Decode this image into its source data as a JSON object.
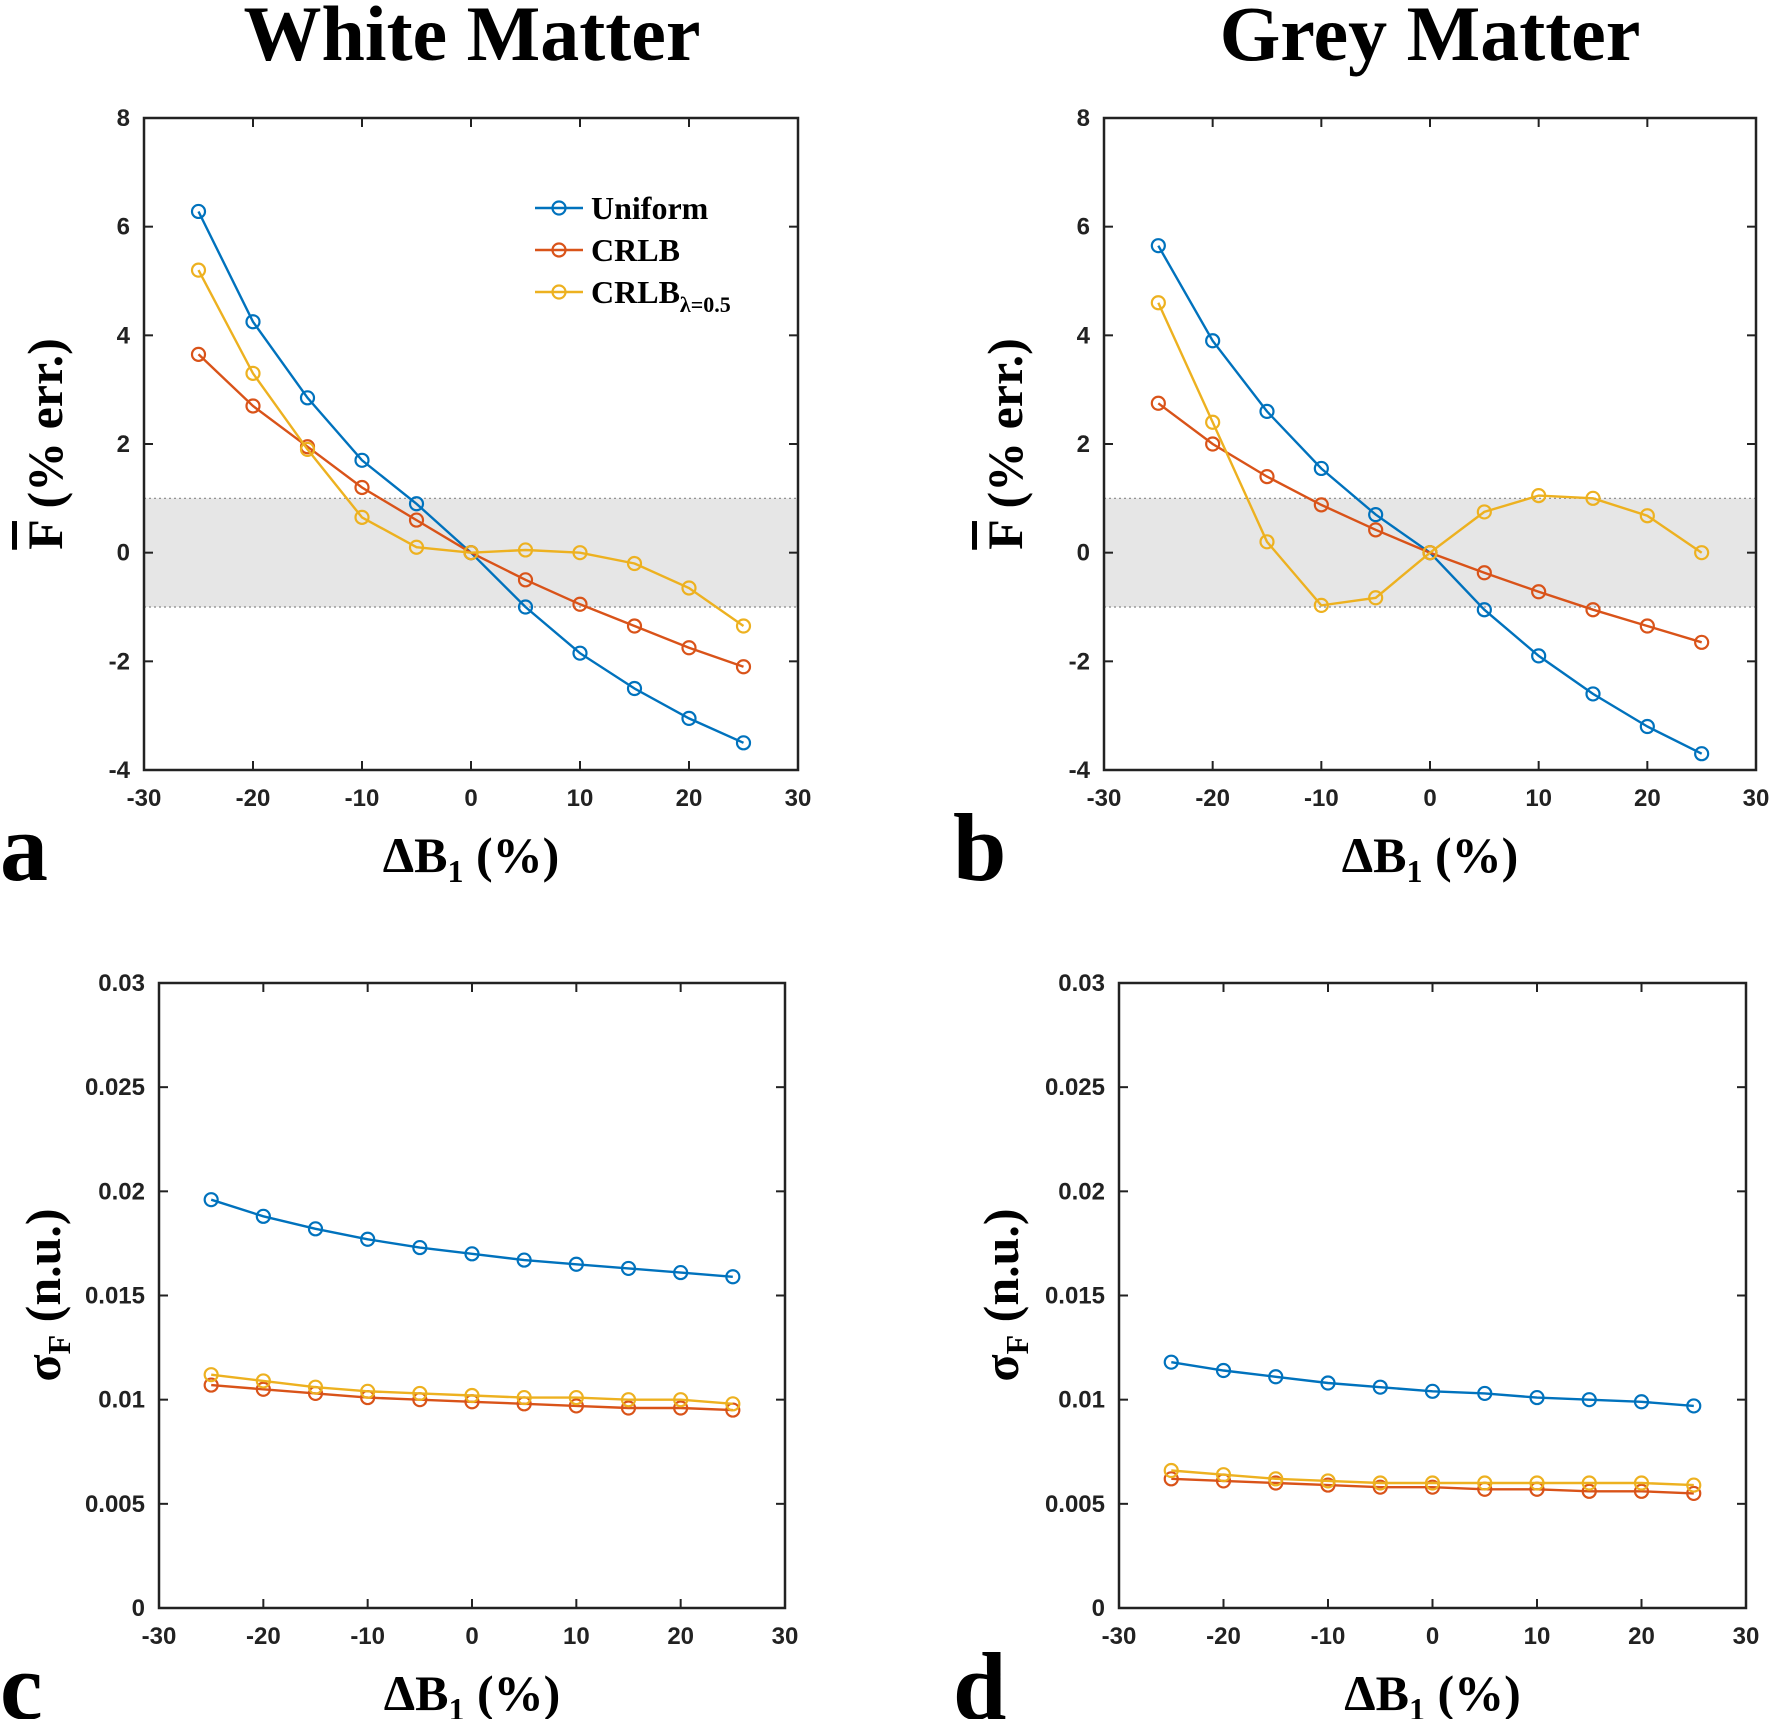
{
  "column_titles": [
    "White Matter",
    "Grey Matter"
  ],
  "colors": {
    "Uniform": "#0072BD",
    "CRLB": "#D95319",
    "CRLB_lambda": "#EDB120",
    "band": "#e6e6e6"
  },
  "legend": {
    "placement": "top-right",
    "entries": [
      {
        "series": "Uniform",
        "text": "Uniform",
        "sub": ""
      },
      {
        "series": "CRLB",
        "text": "CRLB",
        "sub": ""
      },
      {
        "series": "CRLB_lambda",
        "text": "CRLB",
        "sub": "λ=0.5"
      }
    ]
  },
  "chart_data": [
    {
      "type": "line",
      "panel": "a",
      "xlabel": "ΔB",
      "xlabel_sub": "1",
      "xlabel_suffix": " (%)",
      "ylabel": "F (% err.)",
      "ylabel_overline": true,
      "xlim": [
        -30,
        30
      ],
      "ylim": [
        -4,
        8
      ],
      "xticks": [
        -30,
        -20,
        -10,
        0,
        10,
        20,
        30
      ],
      "yticks": [
        -4,
        -2,
        0,
        2,
        4,
        6,
        8
      ],
      "ytick_labels": [
        "-4",
        "-2",
        "0",
        "2",
        "4",
        "6",
        "8"
      ],
      "band": [
        -1,
        1
      ],
      "show_legend": true,
      "x": [
        -25,
        -20,
        -15,
        -10,
        -5,
        0,
        5,
        10,
        15,
        20,
        25
      ],
      "series": [
        {
          "name": "Uniform",
          "values": [
            6.28,
            4.25,
            2.85,
            1.7,
            0.9,
            0,
            -1.0,
            -1.85,
            -2.5,
            -3.05,
            -3.5
          ]
        },
        {
          "name": "CRLB",
          "values": [
            3.65,
            2.7,
            1.95,
            1.2,
            0.6,
            0,
            -0.5,
            -0.95,
            -1.35,
            -1.75,
            -2.1
          ]
        },
        {
          "name": "CRLB",
          "sub": "λ=0.5",
          "values": [
            5.2,
            3.3,
            1.9,
            0.65,
            0.1,
            0,
            0.05,
            0,
            -0.2,
            -0.65,
            -1.35
          ]
        }
      ]
    },
    {
      "type": "line",
      "panel": "b",
      "xlabel": "ΔB",
      "xlabel_sub": "1",
      "xlabel_suffix": " (%)",
      "ylabel": "F (% err.)",
      "ylabel_overline": true,
      "xlim": [
        -30,
        30
      ],
      "ylim": [
        -4,
        8
      ],
      "xticks": [
        -30,
        -20,
        -10,
        0,
        10,
        20,
        30
      ],
      "yticks": [
        -4,
        -2,
        0,
        2,
        4,
        6,
        8
      ],
      "ytick_labels": [
        "-4",
        "-2",
        "0",
        "2",
        "4",
        "6",
        "8"
      ],
      "band": [
        -1,
        1
      ],
      "show_legend": false,
      "x": [
        -25,
        -20,
        -15,
        -10,
        -5,
        0,
        5,
        10,
        15,
        20,
        25
      ],
      "series": [
        {
          "name": "Uniform",
          "values": [
            5.65,
            3.9,
            2.6,
            1.55,
            0.7,
            0,
            -1.05,
            -1.9,
            -2.6,
            -3.2,
            -3.7
          ]
        },
        {
          "name": "CRLB",
          "values": [
            2.75,
            2.0,
            1.4,
            0.88,
            0.42,
            0,
            -0.37,
            -0.72,
            -1.05,
            -1.35,
            -1.65
          ]
        },
        {
          "name": "CRLB",
          "sub": "λ=0.5",
          "values": [
            4.6,
            2.4,
            0.2,
            -0.97,
            -0.83,
            0,
            0.75,
            1.05,
            1.0,
            0.68,
            0
          ]
        }
      ]
    },
    {
      "type": "line",
      "panel": "c",
      "xlabel": "ΔB",
      "xlabel_sub": "1",
      "xlabel_suffix": " (%)",
      "ylabel": "σ",
      "ylabel_sub": "F",
      "ylabel_suffix": " (n.u.)",
      "xlim": [
        -30,
        30
      ],
      "ylim": [
        0,
        0.03
      ],
      "xticks": [
        -30,
        -20,
        -10,
        0,
        10,
        20,
        30
      ],
      "yticks": [
        0,
        0.005,
        0.01,
        0.015,
        0.02,
        0.025,
        0.03
      ],
      "ytick_labels": [
        "0",
        "0.005",
        "0.01",
        "0.015",
        "0.02",
        "0.025",
        "0.03"
      ],
      "show_legend": false,
      "x": [
        -25,
        -20,
        -15,
        -10,
        -5,
        0,
        5,
        10,
        15,
        20,
        25
      ],
      "series": [
        {
          "name": "Uniform",
          "values": [
            0.0196,
            0.0188,
            0.0182,
            0.0177,
            0.0173,
            0.017,
            0.0167,
            0.0165,
            0.0163,
            0.0161,
            0.0159
          ]
        },
        {
          "name": "CRLB",
          "values": [
            0.0107,
            0.0105,
            0.0103,
            0.0101,
            0.01,
            0.0099,
            0.0098,
            0.0097,
            0.0096,
            0.0096,
            0.0095
          ]
        },
        {
          "name": "CRLB",
          "sub": "λ=0.5",
          "values": [
            0.0112,
            0.0109,
            0.0106,
            0.0104,
            0.0103,
            0.0102,
            0.0101,
            0.0101,
            0.01,
            0.01,
            0.0098
          ]
        }
      ]
    },
    {
      "type": "line",
      "panel": "d",
      "xlabel": "ΔB",
      "xlabel_sub": "1",
      "xlabel_suffix": " (%)",
      "ylabel": "σ",
      "ylabel_sub": "F",
      "ylabel_suffix": " (n.u.)",
      "xlim": [
        -30,
        30
      ],
      "ylim": [
        0,
        0.03
      ],
      "xticks": [
        -30,
        -20,
        -10,
        0,
        10,
        20,
        30
      ],
      "yticks": [
        0,
        0.005,
        0.01,
        0.015,
        0.02,
        0.025,
        0.03
      ],
      "ytick_labels": [
        "0",
        "0.005",
        "0.01",
        "0.015",
        "0.02",
        "0.025",
        "0.03"
      ],
      "show_legend": false,
      "x": [
        -25,
        -20,
        -15,
        -10,
        -5,
        0,
        5,
        10,
        15,
        20,
        25
      ],
      "series": [
        {
          "name": "Uniform",
          "values": [
            0.0118,
            0.0114,
            0.0111,
            0.0108,
            0.0106,
            0.0104,
            0.0103,
            0.0101,
            0.01,
            0.0099,
            0.0097
          ]
        },
        {
          "name": "CRLB",
          "values": [
            0.0062,
            0.0061,
            0.006,
            0.0059,
            0.0058,
            0.0058,
            0.0057,
            0.0057,
            0.0056,
            0.0056,
            0.0055
          ]
        },
        {
          "name": "CRLB",
          "sub": "λ=0.5",
          "values": [
            0.0066,
            0.0064,
            0.0062,
            0.0061,
            0.006,
            0.006,
            0.006,
            0.006,
            0.006,
            0.006,
            0.0059
          ]
        }
      ]
    }
  ]
}
